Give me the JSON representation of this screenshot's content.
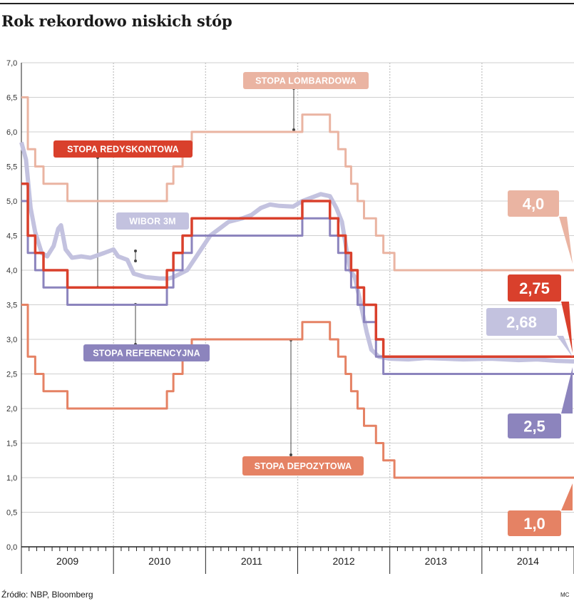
{
  "title": "Rok rekordowo niskich stóp",
  "source": "Źródło: NBP, Bloomberg",
  "credit": "MC",
  "colors": {
    "lombardowa": "#eab4a2",
    "redyskontowa": "#d9402c",
    "wibor": "#c3c2df",
    "referencyjna": "#8c84bd",
    "depozytowa": "#e58264",
    "grid": "#cfcfcf",
    "axis": "#222222"
  },
  "chart_data": {
    "type": "line",
    "title": "Rok rekordowo niskich stóp",
    "xlabel": "",
    "ylabel": "",
    "ylim": [
      0,
      7
    ],
    "xlim": [
      2008.4,
      2014.4
    ],
    "yticks": [
      "0,0",
      "0,5",
      "1,0",
      "1,5",
      "2,0",
      "2,5",
      "3,0",
      "3,5",
      "4,0",
      "4,5",
      "5,0",
      "5,5",
      "6,0",
      "6,5",
      "7,0"
    ],
    "years": [
      "2009",
      "2010",
      "2011",
      "2012",
      "2013",
      "2014"
    ],
    "labels": {
      "lombardowa": "STOPA LOMBARDOWA",
      "redyskontowa": "STOPA REDYSKONTOWA",
      "wibor": "WIBOR 3M",
      "referencyjna": "STOPA REFERENCYJNA",
      "depozytowa": "STOPA DEPOZYTOWA"
    },
    "end_values": {
      "lombardowa": "4,0",
      "redyskontowa": "2,75",
      "wibor": "2,68",
      "referencyjna": "2,5",
      "depozytowa": "1,0"
    },
    "series": [
      {
        "key": "lombardowa",
        "name": "Stopa lombardowa",
        "steps": [
          [
            2008.4,
            6.5
          ],
          [
            2008.47,
            5.75
          ],
          [
            2008.55,
            5.5
          ],
          [
            2008.64,
            5.25
          ],
          [
            2008.9,
            5.0
          ],
          [
            2009.9,
            5.0
          ],
          [
            2009.98,
            5.25
          ],
          [
            2010.05,
            5.5
          ],
          [
            2010.15,
            5.75
          ],
          [
            2010.25,
            6.0
          ],
          [
            2011.45,
            6.25
          ],
          [
            2011.75,
            6.0
          ],
          [
            2011.84,
            5.75
          ],
          [
            2011.92,
            5.5
          ],
          [
            2011.98,
            5.25
          ],
          [
            2012.05,
            5.0
          ],
          [
            2012.12,
            4.75
          ],
          [
            2012.25,
            4.5
          ],
          [
            2012.33,
            4.25
          ],
          [
            2012.45,
            4.0
          ],
          [
            2014.4,
            4.0
          ]
        ]
      },
      {
        "key": "redyskontowa",
        "name": "Stopa redyskontowa",
        "steps": [
          [
            2008.4,
            5.25
          ],
          [
            2008.47,
            4.5
          ],
          [
            2008.55,
            4.25
          ],
          [
            2008.64,
            4.0
          ],
          [
            2008.9,
            3.75
          ],
          [
            2009.9,
            3.75
          ],
          [
            2009.98,
            4.0
          ],
          [
            2010.05,
            4.25
          ],
          [
            2010.15,
            4.5
          ],
          [
            2010.25,
            4.75
          ],
          [
            2011.45,
            5.0
          ],
          [
            2011.75,
            4.75
          ],
          [
            2011.84,
            4.5
          ],
          [
            2011.92,
            4.25
          ],
          [
            2011.98,
            4.0
          ],
          [
            2012.05,
            3.75
          ],
          [
            2012.12,
            3.5
          ],
          [
            2012.25,
            3.0
          ],
          [
            2012.33,
            2.75
          ],
          [
            2014.4,
            2.75
          ]
        ]
      },
      {
        "key": "referencyjna",
        "name": "Stopa referencyjna",
        "steps": [
          [
            2008.4,
            5.0
          ],
          [
            2008.47,
            4.25
          ],
          [
            2008.55,
            4.0
          ],
          [
            2008.64,
            3.75
          ],
          [
            2008.9,
            3.5
          ],
          [
            2009.9,
            3.5
          ],
          [
            2009.98,
            3.75
          ],
          [
            2010.05,
            4.0
          ],
          [
            2010.15,
            4.25
          ],
          [
            2010.25,
            4.5
          ],
          [
            2011.45,
            4.75
          ],
          [
            2011.75,
            4.5
          ],
          [
            2011.84,
            4.25
          ],
          [
            2011.92,
            4.0
          ],
          [
            2011.98,
            3.75
          ],
          [
            2012.05,
            3.5
          ],
          [
            2012.12,
            3.25
          ],
          [
            2012.25,
            2.75
          ],
          [
            2012.33,
            2.5
          ],
          [
            2014.4,
            2.5
          ]
        ]
      },
      {
        "key": "depozytowa",
        "name": "Stopa depozytowa",
        "steps": [
          [
            2008.4,
            3.5
          ],
          [
            2008.47,
            2.75
          ],
          [
            2008.55,
            2.5
          ],
          [
            2008.64,
            2.25
          ],
          [
            2008.9,
            2.0
          ],
          [
            2009.9,
            2.0
          ],
          [
            2009.98,
            2.25
          ],
          [
            2010.05,
            2.5
          ],
          [
            2010.15,
            2.75
          ],
          [
            2010.25,
            3.0
          ],
          [
            2011.45,
            3.25
          ],
          [
            2011.75,
            3.0
          ],
          [
            2011.84,
            2.75
          ],
          [
            2011.92,
            2.5
          ],
          [
            2011.98,
            2.25
          ],
          [
            2012.05,
            2.0
          ],
          [
            2012.12,
            1.75
          ],
          [
            2012.25,
            1.5
          ],
          [
            2012.33,
            1.25
          ],
          [
            2012.45,
            1.0
          ],
          [
            2014.4,
            1.0
          ]
        ]
      },
      {
        "key": "wibor",
        "name": "WIBOR 3M",
        "points": [
          [
            2008.4,
            5.85
          ],
          [
            2008.45,
            5.6
          ],
          [
            2008.5,
            4.9
          ],
          [
            2008.55,
            4.55
          ],
          [
            2008.62,
            4.25
          ],
          [
            2008.68,
            4.2
          ],
          [
            2008.75,
            4.35
          ],
          [
            2008.8,
            4.6
          ],
          [
            2008.83,
            4.65
          ],
          [
            2008.88,
            4.3
          ],
          [
            2008.95,
            4.18
          ],
          [
            2009.05,
            4.2
          ],
          [
            2009.15,
            4.18
          ],
          [
            2009.3,
            4.25
          ],
          [
            2009.4,
            4.3
          ],
          [
            2009.45,
            4.2
          ],
          [
            2009.55,
            4.15
          ],
          [
            2009.62,
            3.95
          ],
          [
            2009.75,
            3.9
          ],
          [
            2009.9,
            3.88
          ],
          [
            2010.0,
            3.88
          ],
          [
            2010.05,
            3.9
          ],
          [
            2010.2,
            4.0
          ],
          [
            2010.35,
            4.3
          ],
          [
            2010.45,
            4.5
          ],
          [
            2010.55,
            4.6
          ],
          [
            2010.65,
            4.7
          ],
          [
            2010.8,
            4.75
          ],
          [
            2010.9,
            4.8
          ],
          [
            2011.0,
            4.9
          ],
          [
            2011.1,
            4.95
          ],
          [
            2011.2,
            4.93
          ],
          [
            2011.35,
            4.92
          ],
          [
            2011.45,
            5.0
          ],
          [
            2011.55,
            5.05
          ],
          [
            2011.65,
            5.1
          ],
          [
            2011.75,
            5.07
          ],
          [
            2011.82,
            4.9
          ],
          [
            2011.88,
            4.7
          ],
          [
            2011.93,
            4.3
          ],
          [
            2011.97,
            4.0
          ],
          [
            2012.02,
            3.9
          ],
          [
            2012.07,
            3.6
          ],
          [
            2012.15,
            3.1
          ],
          [
            2012.2,
            2.85
          ],
          [
            2012.28,
            2.75
          ],
          [
            2012.4,
            2.72
          ],
          [
            2012.6,
            2.71
          ],
          [
            2012.8,
            2.73
          ],
          [
            2013.0,
            2.72
          ],
          [
            2013.2,
            2.71
          ],
          [
            2013.5,
            2.72
          ],
          [
            2013.8,
            2.7
          ],
          [
            2014.0,
            2.71
          ],
          [
            2014.2,
            2.69
          ],
          [
            2014.4,
            2.68
          ]
        ]
      }
    ]
  }
}
